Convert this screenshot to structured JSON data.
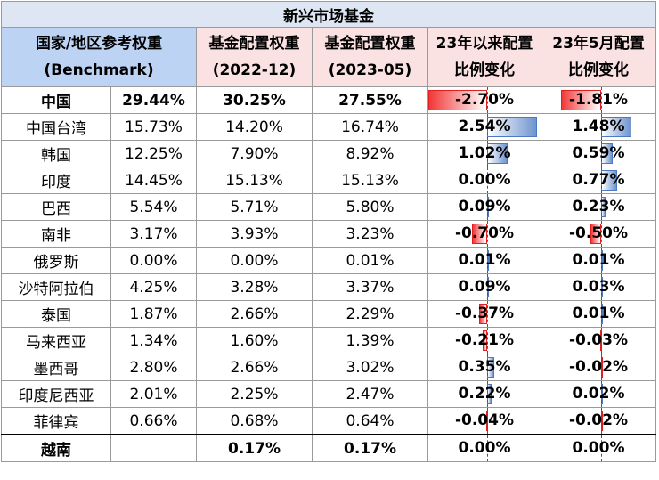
{
  "title": "新兴市场基金",
  "headers": [
    {
      "line1": "国家/地区参考权重",
      "line2": "(Benchmark)"
    },
    {
      "line1": "基金配置权重",
      "line2": "(2022-12)"
    },
    {
      "line1": "基金配置权重",
      "line2": "(2023-05)"
    },
    {
      "line1": "23年以来配置",
      "line2": "比例变化"
    },
    {
      "line1": "23年5月配置",
      "line2": "比例变化"
    }
  ],
  "colors": {
    "title_bg": "#dde6f2",
    "benchmark_header_bg": "#bdd3f3",
    "fund_header_bg": "#fbe2e2",
    "positive_bar": "#6f94cf",
    "negative_bar": "#f23838"
  },
  "chart_data": {
    "type": "table",
    "title": "新兴市场基金",
    "columns": [
      "国家/地区参考权重 (Benchmark)",
      "基金配置权重 (2022-12)",
      "基金配置权重 (2023-05)",
      "23年以来配置比例变化",
      "23年5月配置比例变化"
    ],
    "bar_scale_max": 2.7,
    "rows": [
      {
        "country": "中国",
        "benchmark": "29.44%",
        "w2022": "30.25%",
        "w2023": "27.55%",
        "chg_ytd": "-2.70%",
        "chg_may": "-1.81%",
        "ytd": -2.7,
        "may": -1.81,
        "bold": true
      },
      {
        "country": "中国台湾",
        "benchmark": "15.73%",
        "w2022": "14.20%",
        "w2023": "16.74%",
        "chg_ytd": "2.54%",
        "chg_may": "1.48%",
        "ytd": 2.54,
        "may": 1.48,
        "bold": false
      },
      {
        "country": "韩国",
        "benchmark": "12.25%",
        "w2022": "7.90%",
        "w2023": "8.92%",
        "chg_ytd": "1.02%",
        "chg_may": "0.59%",
        "ytd": 1.02,
        "may": 0.59,
        "bold": false
      },
      {
        "country": "印度",
        "benchmark": "14.45%",
        "w2022": "15.13%",
        "w2023": "15.13%",
        "chg_ytd": "0.00%",
        "chg_may": "0.77%",
        "ytd": 0.0,
        "may": 0.77,
        "bold": false
      },
      {
        "country": "巴西",
        "benchmark": "5.54%",
        "w2022": "5.71%",
        "w2023": "5.80%",
        "chg_ytd": "0.09%",
        "chg_may": "0.23%",
        "ytd": 0.09,
        "may": 0.23,
        "bold": false
      },
      {
        "country": "南非",
        "benchmark": "3.17%",
        "w2022": "3.93%",
        "w2023": "3.23%",
        "chg_ytd": "-0.70%",
        "chg_may": "-0.50%",
        "ytd": -0.7,
        "may": -0.5,
        "bold": false
      },
      {
        "country": "俄罗斯",
        "benchmark": "0.00%",
        "w2022": "0.00%",
        "w2023": "0.01%",
        "chg_ytd": "0.01%",
        "chg_may": "0.01%",
        "ytd": 0.01,
        "may": 0.01,
        "bold": false
      },
      {
        "country": "沙特阿拉伯",
        "benchmark": "4.25%",
        "w2022": "3.28%",
        "w2023": "3.37%",
        "chg_ytd": "0.09%",
        "chg_may": "0.03%",
        "ytd": 0.09,
        "may": 0.03,
        "bold": false
      },
      {
        "country": "泰国",
        "benchmark": "1.87%",
        "w2022": "2.66%",
        "w2023": "2.29%",
        "chg_ytd": "-0.37%",
        "chg_may": "0.01%",
        "ytd": -0.37,
        "may": 0.01,
        "bold": false
      },
      {
        "country": "马来西亚",
        "benchmark": "1.34%",
        "w2022": "1.60%",
        "w2023": "1.39%",
        "chg_ytd": "-0.21%",
        "chg_may": "-0.03%",
        "ytd": -0.21,
        "may": -0.03,
        "bold": false
      },
      {
        "country": "墨西哥",
        "benchmark": "2.80%",
        "w2022": "2.66%",
        "w2023": "3.02%",
        "chg_ytd": "0.35%",
        "chg_may": "-0.02%",
        "ytd": 0.35,
        "may": -0.02,
        "bold": false
      },
      {
        "country": "印度尼西亚",
        "benchmark": "2.01%",
        "w2022": "2.25%",
        "w2023": "2.47%",
        "chg_ytd": "0.22%",
        "chg_may": "0.02%",
        "ytd": 0.22,
        "may": 0.02,
        "bold": false
      },
      {
        "country": "菲律宾",
        "benchmark": "0.66%",
        "w2022": "0.68%",
        "w2023": "0.64%",
        "chg_ytd": "-0.04%",
        "chg_may": "-0.02%",
        "ytd": -0.04,
        "may": -0.02,
        "bold": false
      },
      {
        "country": "越南",
        "benchmark": "",
        "w2022": "0.17%",
        "w2023": "0.17%",
        "chg_ytd": "0.00%",
        "chg_may": "0.00%",
        "ytd": 0.0,
        "may": 0.0,
        "bold": true
      }
    ]
  }
}
